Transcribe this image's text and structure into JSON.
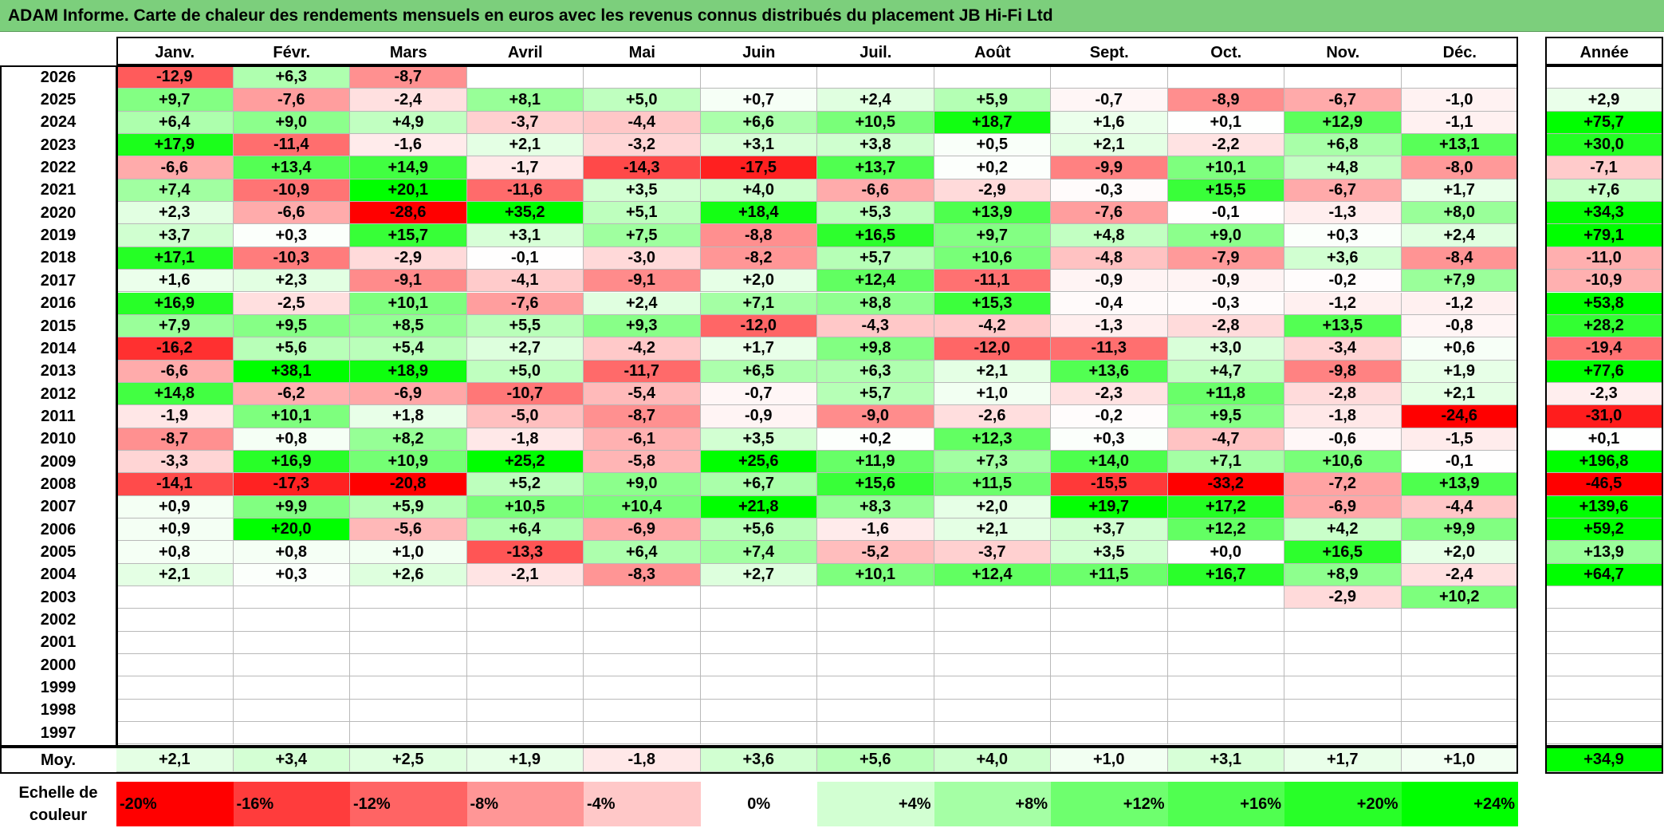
{
  "title": "ADAM Informe. Carte de chaleur des rendements mensuels en euros avec les revenus connus distribués du placement JB Hi-Fi Ltd",
  "chart_data": {
    "type": "heatmap",
    "title": "ADAM Informe. Carte de chaleur des rendements mensuels en euros avec les revenus connus distribués du placement JB Hi-Fi Ltd",
    "months": [
      "Janv.",
      "Févr.",
      "Mars",
      "Avril",
      "Mai",
      "Juin",
      "Juil.",
      "Août",
      "Sept.",
      "Oct.",
      "Nov.",
      "Déc."
    ],
    "year_header": "Année",
    "rows": [
      {
        "year": "2026",
        "months": [
          "-12,9",
          "+6,3",
          "-8,7",
          "",
          "",
          "",
          "",
          "",
          "",
          "",
          "",
          ""
        ],
        "annual": ""
      },
      {
        "year": "2025",
        "months": [
          "+9,7",
          "-7,6",
          "-2,4",
          "+8,1",
          "+5,0",
          "+0,7",
          "+2,4",
          "+5,9",
          "-0,7",
          "-8,9",
          "-6,7",
          "-1,0"
        ],
        "annual": "+2,9"
      },
      {
        "year": "2024",
        "months": [
          "+6,4",
          "+9,0",
          "+4,9",
          "-3,7",
          "-4,4",
          "+6,6",
          "+10,5",
          "+18,7",
          "+1,6",
          "+0,1",
          "+12,9",
          "-1,1"
        ],
        "annual": "+75,7"
      },
      {
        "year": "2023",
        "months": [
          "+17,9",
          "-11,4",
          "-1,6",
          "+2,1",
          "-3,2",
          "+3,1",
          "+3,8",
          "+0,5",
          "+2,1",
          "-2,2",
          "+6,8",
          "+13,1"
        ],
        "annual": "+30,0"
      },
      {
        "year": "2022",
        "months": [
          "-6,6",
          "+13,4",
          "+14,9",
          "-1,7",
          "-14,3",
          "-17,5",
          "+13,7",
          "+0,2",
          "-9,9",
          "+10,1",
          "+4,8",
          "-8,0"
        ],
        "annual": "-7,1"
      },
      {
        "year": "2021",
        "months": [
          "+7,4",
          "-10,9",
          "+20,1",
          "-11,6",
          "+3,5",
          "+4,0",
          "-6,6",
          "-2,9",
          "-0,3",
          "+15,5",
          "-6,7",
          "+1,7"
        ],
        "annual": "+7,6"
      },
      {
        "year": "2020",
        "months": [
          "+2,3",
          "-6,6",
          "-28,6",
          "+35,2",
          "+5,1",
          "+18,4",
          "+5,3",
          "+13,9",
          "-7,6",
          "-0,1",
          "-1,3",
          "+8,0"
        ],
        "annual": "+34,3"
      },
      {
        "year": "2019",
        "months": [
          "+3,7",
          "+0,3",
          "+15,7",
          "+3,1",
          "+7,5",
          "-8,8",
          "+16,5",
          "+9,7",
          "+4,8",
          "+9,0",
          "+0,3",
          "+2,4"
        ],
        "annual": "+79,1"
      },
      {
        "year": "2018",
        "months": [
          "+17,1",
          "-10,3",
          "-2,9",
          "-0,1",
          "-3,0",
          "-8,2",
          "+5,7",
          "+10,6",
          "-4,8",
          "-7,9",
          "+3,6",
          "-8,4"
        ],
        "annual": "-11,0"
      },
      {
        "year": "2017",
        "months": [
          "+1,6",
          "+2,3",
          "-9,1",
          "-4,1",
          "-9,1",
          "+2,0",
          "+12,4",
          "-11,1",
          "-0,9",
          "-0,9",
          "-0,2",
          "+7,9"
        ],
        "annual": "-10,9"
      },
      {
        "year": "2016",
        "months": [
          "+16,9",
          "-2,5",
          "+10,1",
          "-7,6",
          "+2,4",
          "+7,1",
          "+8,8",
          "+15,3",
          "-0,4",
          "-0,3",
          "-1,2",
          "-1,2"
        ],
        "annual": "+53,8"
      },
      {
        "year": "2015",
        "months": [
          "+7,9",
          "+9,5",
          "+8,5",
          "+5,5",
          "+9,3",
          "-12,0",
          "-4,3",
          "-4,2",
          "-1,3",
          "-2,8",
          "+13,5",
          "-0,8"
        ],
        "annual": "+28,2"
      },
      {
        "year": "2014",
        "months": [
          "-16,2",
          "+5,6",
          "+5,4",
          "+2,7",
          "-4,2",
          "+1,7",
          "+9,8",
          "-12,0",
          "-11,3",
          "+3,0",
          "-3,4",
          "+0,6"
        ],
        "annual": "-19,4"
      },
      {
        "year": "2013",
        "months": [
          "-6,6",
          "+38,1",
          "+18,9",
          "+5,0",
          "-11,7",
          "+6,5",
          "+6,3",
          "+2,1",
          "+13,6",
          "+4,7",
          "-9,8",
          "+1,9"
        ],
        "annual": "+77,6"
      },
      {
        "year": "2012",
        "months": [
          "+14,8",
          "-6,2",
          "-6,9",
          "-10,7",
          "-5,4",
          "-0,7",
          "+5,7",
          "+1,0",
          "-2,3",
          "+11,8",
          "-2,8",
          "+2,1"
        ],
        "annual": "-2,3"
      },
      {
        "year": "2011",
        "months": [
          "-1,9",
          "+10,1",
          "+1,8",
          "-5,0",
          "-8,7",
          "-0,9",
          "-9,0",
          "-2,6",
          "-0,2",
          "+9,5",
          "-1,8",
          "-24,6"
        ],
        "annual": "-31,0"
      },
      {
        "year": "2010",
        "months": [
          "-8,7",
          "+0,8",
          "+8,2",
          "-1,8",
          "-6,1",
          "+3,5",
          "+0,2",
          "+12,3",
          "+0,3",
          "-4,7",
          "-0,6",
          "-1,5"
        ],
        "annual": "+0,1"
      },
      {
        "year": "2009",
        "months": [
          "-3,3",
          "+16,9",
          "+10,9",
          "+25,2",
          "-5,8",
          "+25,6",
          "+11,9",
          "+7,3",
          "+14,0",
          "+7,1",
          "+10,6",
          "-0,1"
        ],
        "annual": "+196,8"
      },
      {
        "year": "2008",
        "months": [
          "-14,1",
          "-17,3",
          "-20,8",
          "+5,2",
          "+9,0",
          "+6,7",
          "+15,6",
          "+11,5",
          "-15,5",
          "-33,2",
          "-7,2",
          "+13,9"
        ],
        "annual": "-46,5"
      },
      {
        "year": "2007",
        "months": [
          "+0,9",
          "+9,9",
          "+5,9",
          "+10,5",
          "+10,4",
          "+21,8",
          "+8,3",
          "+2,0",
          "+19,7",
          "+17,2",
          "-6,9",
          "-4,4"
        ],
        "annual": "+139,6"
      },
      {
        "year": "2006",
        "months": [
          "+0,9",
          "+20,0",
          "-5,6",
          "+6,4",
          "-6,9",
          "+5,6",
          "-1,6",
          "+2,1",
          "+3,7",
          "+12,2",
          "+4,2",
          "+9,9"
        ],
        "annual": "+59,2"
      },
      {
        "year": "2005",
        "months": [
          "+0,8",
          "+0,8",
          "+1,0",
          "-13,3",
          "+6,4",
          "+7,4",
          "-5,2",
          "-3,7",
          "+3,5",
          "+0,0",
          "+16,5",
          "+2,0"
        ],
        "annual": "+13,9"
      },
      {
        "year": "2004",
        "months": [
          "+2,1",
          "+0,3",
          "+2,6",
          "-2,1",
          "-8,3",
          "+2,7",
          "+10,1",
          "+12,4",
          "+11,5",
          "+16,7",
          "+8,9",
          "-2,4"
        ],
        "annual": "+64,7"
      },
      {
        "year": "2003",
        "months": [
          "",
          "",
          "",
          "",
          "",
          "",
          "",
          "",
          "",
          "",
          "-2,9",
          "+10,2"
        ],
        "annual": ""
      },
      {
        "year": "2002",
        "months": [
          "",
          "",
          "",
          "",
          "",
          "",
          "",
          "",
          "",
          "",
          "",
          ""
        ],
        "annual": ""
      },
      {
        "year": "2001",
        "months": [
          "",
          "",
          "",
          "",
          "",
          "",
          "",
          "",
          "",
          "",
          "",
          ""
        ],
        "annual": ""
      },
      {
        "year": "2000",
        "months": [
          "",
          "",
          "",
          "",
          "",
          "",
          "",
          "",
          "",
          "",
          "",
          ""
        ],
        "annual": ""
      },
      {
        "year": "1999",
        "months": [
          "",
          "",
          "",
          "",
          "",
          "",
          "",
          "",
          "",
          "",
          "",
          ""
        ],
        "annual": ""
      },
      {
        "year": "1998",
        "months": [
          "",
          "",
          "",
          "",
          "",
          "",
          "",
          "",
          "",
          "",
          "",
          ""
        ],
        "annual": ""
      },
      {
        "year": "1997",
        "months": [
          "",
          "",
          "",
          "",
          "",
          "",
          "",
          "",
          "",
          "",
          "",
          ""
        ],
        "annual": ""
      }
    ],
    "average": {
      "label": "Moy.",
      "months": [
        "+2,1",
        "+3,4",
        "+2,5",
        "+1,9",
        "-1,8",
        "+3,6",
        "+5,6",
        "+4,0",
        "+1,0",
        "+3,1",
        "+1,7",
        "+1,0"
      ],
      "annual": "+34,9"
    },
    "color_scale": {
      "label_line1": "Echelle de",
      "label_line2": "couleur",
      "stops": [
        "-20%",
        "-16%",
        "-12%",
        "-8%",
        "-4%",
        "0%",
        "+4%",
        "+8%",
        "+12%",
        "+16%",
        "+20%",
        "+24%"
      ],
      "colors": [
        "#ff0000",
        "#ff3c3c",
        "#ff6464",
        "#ff9696",
        "#ffc8c8",
        "#ffffff",
        "#d2ffd2",
        "#a5ffa5",
        "#6eff6e",
        "#50ff50",
        "#28ff28",
        "#00ff00"
      ]
    }
  }
}
